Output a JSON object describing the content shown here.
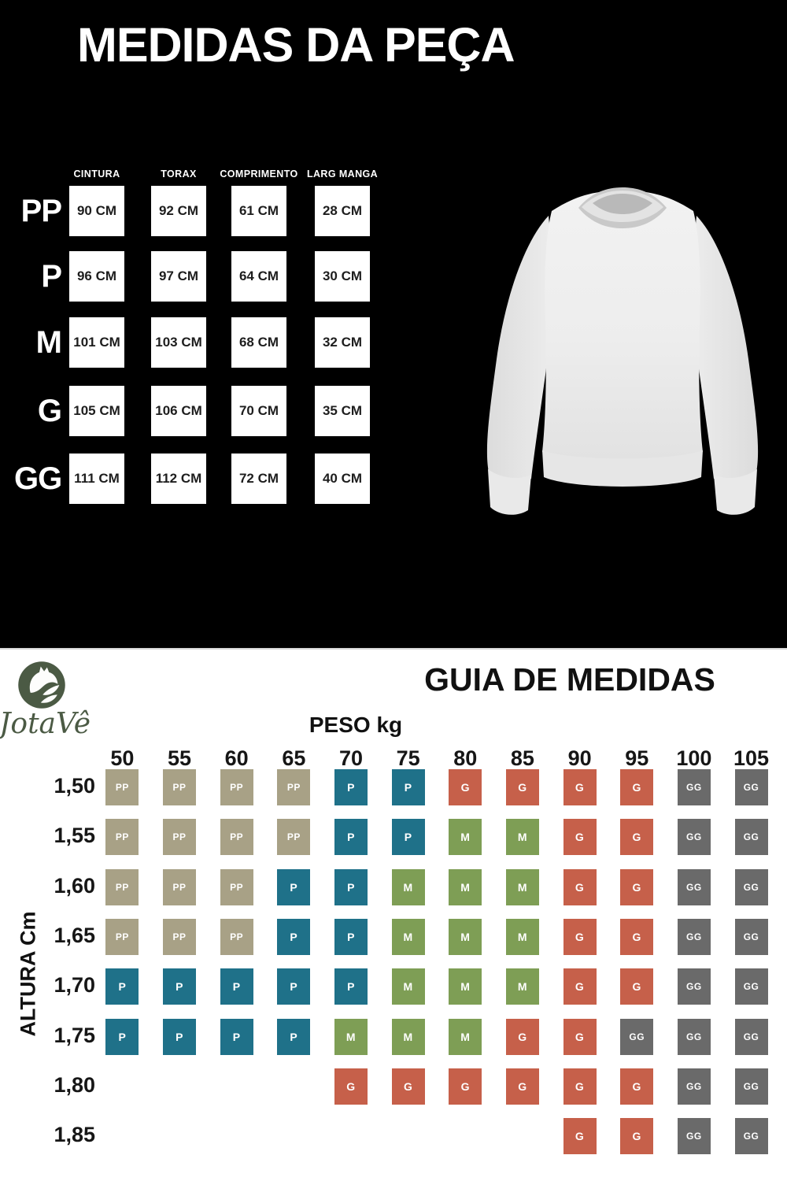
{
  "top_panel": {
    "title": "MEDIDAS DA PEÇA"
  },
  "brand": {
    "name": "JotaVê",
    "logo_icon": "horse-head-logo",
    "color": "#4b5a44"
  },
  "guide_panel": {
    "title": "GUIA DE MEDIDAS"
  },
  "chart_data": [
    {
      "type": "table",
      "title": "MEDIDAS DA PEÇA",
      "columns": [
        "CINTURA",
        "TORAX",
        "COMPRIMENTO",
        "LARG MANGA"
      ],
      "rows": [
        {
          "size": "PP",
          "values": [
            "90 CM",
            "92 CM",
            "61 CM",
            "28 CM"
          ]
        },
        {
          "size": "P",
          "values": [
            "96 CM",
            "97 CM",
            "64 CM",
            "30 CM"
          ]
        },
        {
          "size": "M",
          "values": [
            "101 CM",
            "103 CM",
            "68 CM",
            "32 CM"
          ]
        },
        {
          "size": "G",
          "values": [
            "105 CM",
            "106 CM",
            "70 CM",
            "35 CM"
          ]
        },
        {
          "size": "GG",
          "values": [
            "111 CM",
            "112 CM",
            "72 CM",
            "40 CM"
          ]
        }
      ]
    },
    {
      "type": "heatmap",
      "title": "GUIA DE MEDIDAS",
      "xlabel": "PESO kg",
      "ylabel": "ALTURA Cm",
      "x": [
        "50",
        "55",
        "60",
        "65",
        "70",
        "75",
        "80",
        "85",
        "90",
        "95",
        "100",
        "105"
      ],
      "y": [
        "1,50",
        "1,55",
        "1,60",
        "1,65",
        "1,70",
        "1,75",
        "1,80",
        "1,85"
      ],
      "values": [
        [
          "PP",
          "PP",
          "PP",
          "PP",
          "P",
          "P",
          "G",
          "G",
          "G",
          "G",
          "GG",
          "GG"
        ],
        [
          "PP",
          "PP",
          "PP",
          "PP",
          "P",
          "P",
          "M",
          "M",
          "G",
          "G",
          "GG",
          "GG"
        ],
        [
          "PP",
          "PP",
          "PP",
          "P",
          "P",
          "M",
          "M",
          "M",
          "G",
          "G",
          "GG",
          "GG"
        ],
        [
          "PP",
          "PP",
          "PP",
          "P",
          "P",
          "M",
          "M",
          "M",
          "G",
          "G",
          "GG",
          "GG"
        ],
        [
          "P",
          "P",
          "P",
          "P",
          "P",
          "M",
          "M",
          "M",
          "G",
          "G",
          "GG",
          "GG"
        ],
        [
          "P",
          "P",
          "P",
          "P",
          "M",
          "M",
          "M",
          "G",
          "G",
          "GG",
          "GG",
          "GG"
        ],
        [
          null,
          null,
          null,
          null,
          "G",
          "G",
          "G",
          "G",
          "G",
          "G",
          "GG",
          "GG"
        ],
        [
          null,
          null,
          null,
          null,
          null,
          null,
          null,
          null,
          "G",
          "G",
          "GG",
          "GG"
        ]
      ],
      "size_colors": {
        "PP": "#a8a186",
        "P": "#1f7189",
        "M": "#7e9e55",
        "G": "#c6604a",
        "GG": "#6a6a6a"
      },
      "legend_position": "none",
      "grid": false
    }
  ]
}
